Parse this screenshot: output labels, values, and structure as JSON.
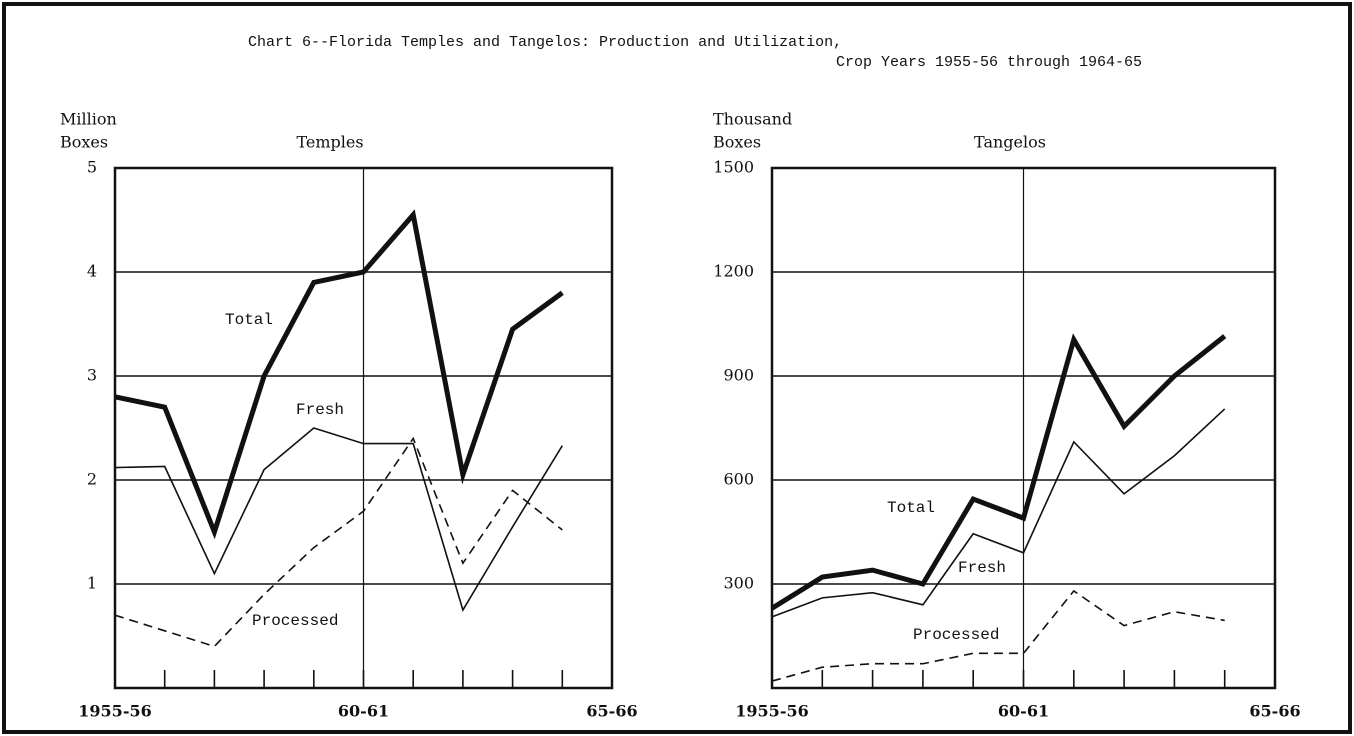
{
  "title": "Chart 6--Florida Temples and Tangelos:  Production and Utilization,",
  "subtitle": "Crop Years 1955-56 through 1964-65",
  "chart_data": [
    {
      "type": "line",
      "title": "Temples",
      "ylabel": [
        "Million",
        "Boxes"
      ],
      "x": [
        1955,
        1956,
        1957,
        1958,
        1959,
        1960,
        1961,
        1962,
        1963,
        1964
      ],
      "series": [
        {
          "name": "Total",
          "color": "#111111",
          "style": "thick",
          "values": [
            2.8,
            2.7,
            1.5,
            3.0,
            3.9,
            4.0,
            4.55,
            2.05,
            3.45,
            3.8
          ]
        },
        {
          "name": "Fresh",
          "color": "#111111",
          "style": "solid",
          "values": [
            2.12,
            2.13,
            1.1,
            2.1,
            2.5,
            2.35,
            2.35,
            0.75,
            1.55,
            2.33
          ]
        },
        {
          "name": "Processed",
          "color": "#111111",
          "style": "dashed",
          "values": [
            0.7,
            0.55,
            0.4,
            0.9,
            1.35,
            1.7,
            2.4,
            1.2,
            1.9,
            1.52
          ]
        }
      ],
      "xlim": [
        1955,
        1965
      ],
      "xticks": [
        {
          "value": 1955,
          "label": "1955-56"
        },
        {
          "value": 1960,
          "label": "60-61"
        },
        {
          "value": 1965,
          "label": "65-66"
        }
      ],
      "xminor_ticks": [
        1956,
        1957,
        1958,
        1959,
        1961,
        1962,
        1963,
        1964
      ],
      "xgrid": [
        1960
      ],
      "ylim": [
        0,
        5
      ],
      "yticks": [
        1,
        2,
        3,
        4,
        5
      ],
      "grid": true
    },
    {
      "type": "line",
      "title": "Tangelos",
      "ylabel": [
        "Thousand",
        "Boxes"
      ],
      "x": [
        1955,
        1956,
        1957,
        1958,
        1959,
        1960,
        1961,
        1962,
        1963,
        1964
      ],
      "series": [
        {
          "name": "Total",
          "color": "#111111",
          "style": "thick",
          "values": [
            230,
            320,
            340,
            300,
            545,
            490,
            1005,
            755,
            900,
            1015
          ]
        },
        {
          "name": "Fresh",
          "color": "#111111",
          "style": "solid",
          "values": [
            205,
            260,
            275,
            240,
            445,
            390,
            710,
            560,
            670,
            805
          ]
        },
        {
          "name": "Processed",
          "color": "#111111",
          "style": "dashed",
          "values": [
            20,
            60,
            70,
            70,
            100,
            100,
            280,
            180,
            220,
            195
          ]
        }
      ],
      "xlim": [
        1955,
        1965
      ],
      "xticks": [
        {
          "value": 1955,
          "label": "1955-56"
        },
        {
          "value": 1960,
          "label": "60-61"
        },
        {
          "value": 1965,
          "label": "65-66"
        }
      ],
      "xminor_ticks": [
        1956,
        1957,
        1958,
        1959,
        1961,
        1962,
        1963,
        1964
      ],
      "xgrid": [
        1960
      ],
      "ylim": [
        0,
        1500
      ],
      "yticks": [
        300,
        600,
        900,
        1200,
        1500
      ],
      "grid": true
    }
  ]
}
